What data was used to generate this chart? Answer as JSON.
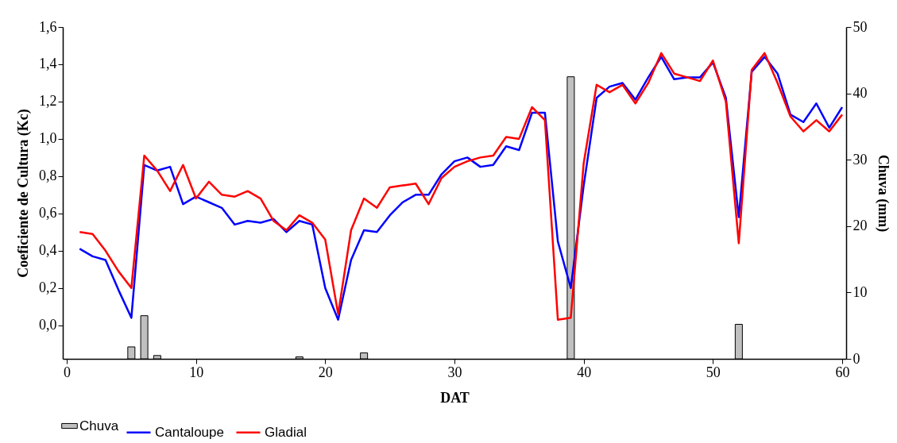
{
  "chart_data": {
    "type": "line",
    "xlabel": "DAT",
    "ylabel": "Coeficiente de Cultura (Kc)",
    "y2label": "Chuva (mm)",
    "x": [
      1,
      2,
      3,
      4,
      5,
      6,
      7,
      8,
      9,
      10,
      11,
      12,
      13,
      14,
      15,
      16,
      17,
      18,
      19,
      20,
      21,
      22,
      23,
      24,
      25,
      26,
      27,
      28,
      29,
      30,
      31,
      32,
      33,
      34,
      35,
      36,
      37,
      38,
      39,
      40,
      41,
      42,
      43,
      44,
      45,
      46,
      47,
      48,
      49,
      50,
      51,
      52,
      53,
      54,
      55,
      56,
      57,
      58,
      59,
      60
    ],
    "xlim": [
      0,
      60
    ],
    "xticks": [
      0,
      10,
      20,
      30,
      40,
      50,
      60
    ],
    "ylim": [
      -0.18,
      1.6
    ],
    "yticks": [
      {
        "value": 0.0,
        "label": "0,0"
      },
      {
        "value": 0.2,
        "label": "0,2"
      },
      {
        "value": 0.4,
        "label": "0,4"
      },
      {
        "value": 0.6,
        "label": "0,6"
      },
      {
        "value": 0.8,
        "label": "0,8"
      },
      {
        "value": 1.0,
        "label": "1,0"
      },
      {
        "value": 1.2,
        "label": "1,2"
      },
      {
        "value": 1.4,
        "label": "1,4"
      },
      {
        "value": 1.6,
        "label": "1,6"
      }
    ],
    "y2lim": [
      0,
      50
    ],
    "y2ticks": [
      0,
      10,
      20,
      30,
      40,
      50
    ],
    "legend": "bottom",
    "series": [
      {
        "name": "Cantaloupe",
        "color": "#0000ff",
        "values": [
          0.41,
          0.37,
          0.35,
          0.19,
          0.04,
          0.86,
          0.83,
          0.85,
          0.65,
          0.69,
          0.66,
          0.63,
          0.54,
          0.56,
          0.55,
          0.57,
          0.5,
          0.56,
          0.54,
          0.2,
          0.03,
          0.35,
          0.51,
          0.5,
          0.59,
          0.66,
          0.7,
          0.7,
          0.81,
          0.88,
          0.9,
          0.85,
          0.86,
          0.96,
          0.94,
          1.14,
          1.14,
          0.45,
          0.2,
          0.75,
          1.22,
          1.28,
          1.3,
          1.21,
          1.33,
          1.44,
          1.32,
          1.33,
          1.33,
          1.41,
          1.22,
          0.58,
          1.36,
          1.44,
          1.35,
          1.13,
          1.09,
          1.19,
          1.06,
          1.17
        ]
      },
      {
        "name": "Gladial",
        "color": "#ff0000",
        "values": [
          0.5,
          0.49,
          0.4,
          0.29,
          0.2,
          0.91,
          0.83,
          0.72,
          0.86,
          0.68,
          0.77,
          0.7,
          0.69,
          0.72,
          0.68,
          0.56,
          0.51,
          0.59,
          0.55,
          0.46,
          0.06,
          0.51,
          0.68,
          0.63,
          0.74,
          0.75,
          0.76,
          0.65,
          0.79,
          0.85,
          0.88,
          0.9,
          0.91,
          1.01,
          1.0,
          1.17,
          1.1,
          0.03,
          0.04,
          0.87,
          1.29,
          1.25,
          1.29,
          1.19,
          1.3,
          1.46,
          1.35,
          1.33,
          1.31,
          1.42,
          1.2,
          0.44,
          1.37,
          1.46,
          1.3,
          1.12,
          1.04,
          1.1,
          1.04,
          1.13
        ]
      },
      {
        "name": "Chuva",
        "type": "bar",
        "axis": "y2",
        "color": "#c0c0c0",
        "x": [
          5,
          6,
          7,
          18,
          23,
          39,
          52
        ],
        "values": [
          1.8,
          6.5,
          0.5,
          0.3,
          0.9,
          42.5,
          5.2
        ]
      }
    ]
  }
}
